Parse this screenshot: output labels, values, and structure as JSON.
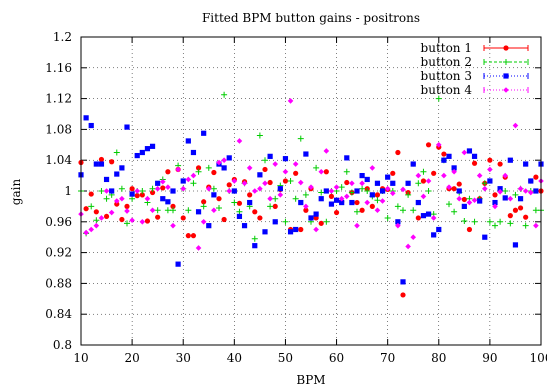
{
  "chart_data": {
    "type": "scatter",
    "title": "Fitted BPM button gains - positrons",
    "xlabel": "BPM",
    "ylabel": "gain",
    "xlim": [
      10,
      100
    ],
    "ylim": [
      0.8,
      1.2
    ],
    "xticks": [
      10,
      20,
      30,
      40,
      50,
      60,
      70,
      80,
      90,
      100
    ],
    "yticks": [
      0.8,
      0.84,
      0.88,
      0.92,
      0.96,
      1,
      1.04,
      1.08,
      1.12,
      1.16,
      1.2
    ],
    "ytick_labels": [
      "0.8",
      "0.84",
      "0.88",
      "0.92",
      "0.96",
      "1",
      "1.04",
      "1.08",
      "1.12",
      "1.16",
      "1.2"
    ],
    "xtick_labels": [
      "10",
      "20",
      "30",
      "40",
      "50",
      "60",
      "70",
      "80",
      "90",
      "100"
    ],
    "grid": true,
    "legend_position": "top-right",
    "series": [
      {
        "name": "button 1",
        "color": "#ff0000",
        "marker": "circle",
        "x": [
          10,
          11,
          12,
          13,
          14,
          15,
          16,
          17,
          18,
          19,
          20,
          21,
          22,
          23,
          24,
          25,
          26,
          27,
          28,
          29,
          30,
          31,
          32,
          33,
          34,
          35,
          36,
          37,
          38,
          39,
          40,
          41,
          42,
          43,
          44,
          45,
          46,
          47,
          48,
          49,
          50,
          51,
          52,
          53,
          54,
          55,
          56,
          57,
          58,
          59,
          60,
          61,
          62,
          63,
          64,
          65,
          66,
          67,
          68,
          69,
          70,
          71,
          72,
          73,
          74,
          75,
          76,
          77,
          78,
          79,
          80,
          81,
          82,
          83,
          84,
          85,
          86,
          87,
          88,
          89,
          90,
          91,
          92,
          93,
          94,
          95,
          96,
          97,
          98,
          99,
          100
        ],
        "y": [
          1.037,
          0.977,
          0.996,
          0.973,
          1.041,
          0.967,
          1.038,
          0.983,
          0.963,
          0.98,
          1.003,
          0.994,
          0.995,
          0.961,
          0.998,
          0.966,
          1.004,
          1.025,
          0.98,
          1.028,
          0.965,
          0.942,
          0.942,
          1.03,
          0.986,
          1.005,
          1.024,
          0.99,
          0.963,
          1.008,
          1.015,
          0.984,
          1.012,
          0.995,
          0.973,
          0.965,
          1.028,
          1.011,
          0.98,
          1.002,
          1.013,
          0.95,
          1.023,
          0.95,
          0.975,
          1.003,
          0.965,
          0.958,
          1.025,
          0.993,
          0.972,
          0.986,
          1.011,
          0.998,
          0.985,
          0.975,
          1.003,
          0.98,
          0.995,
          1.003,
          1.002,
          1.023,
          1.05,
          0.865,
          0.998,
          1.035,
          0.965,
          1.013,
          1.06,
          1.023,
          1.057,
          1.048,
          1.003,
          1.003,
          1.009,
          0.989,
          0.95,
          1.036,
          0.99,
          1.01,
          1.04,
          0.995,
          1.035,
          1.018,
          0.968,
          0.975,
          0.978,
          0.966,
          1.013,
          1.018,
          1.0
        ]
      },
      {
        "name": "button 2",
        "color": "#00cc00",
        "marker": "plus",
        "x": [
          10,
          11,
          12,
          13,
          14,
          15,
          16,
          17,
          18,
          19,
          20,
          21,
          22,
          23,
          24,
          25,
          26,
          27,
          28,
          29,
          30,
          31,
          32,
          33,
          34,
          35,
          36,
          37,
          38,
          39,
          40,
          41,
          42,
          43,
          44,
          45,
          46,
          47,
          48,
          49,
          50,
          51,
          52,
          53,
          54,
          55,
          56,
          57,
          58,
          59,
          60,
          61,
          62,
          63,
          64,
          65,
          66,
          67,
          68,
          69,
          70,
          71,
          72,
          73,
          74,
          75,
          76,
          77,
          78,
          79,
          80,
          81,
          82,
          83,
          84,
          85,
          86,
          87,
          88,
          89,
          90,
          91,
          92,
          93,
          94,
          95,
          96,
          97,
          98,
          99,
          100
        ],
        "y": [
          1.0,
          0.945,
          0.98,
          0.962,
          1.0,
          0.99,
          0.995,
          1.05,
          1.003,
          0.958,
          0.99,
          1.0,
          1.0,
          0.985,
          1.003,
          0.975,
          1.015,
          0.975,
          0.975,
          1.033,
          1.003,
          0.975,
          1.01,
          1.025,
          0.98,
          1.03,
          1.003,
          0.978,
          1.125,
          1.0,
          0.985,
          0.973,
          1.01,
          0.98,
          0.938,
          1.072,
          1.04,
          0.98,
          0.99,
          1.007,
          0.96,
          1.013,
          0.99,
          1.068,
          0.995,
          0.96,
          1.03,
          0.998,
          0.96,
          1.0,
          1.0,
          1.005,
          1.025,
          0.998,
          0.973,
          1.003,
          1.0,
          0.993,
          0.988,
          1.0,
          0.965,
          1.0,
          0.98,
          0.975,
          0.995,
          0.975,
          1.01,
          1.025,
          1.0,
          0.97,
          1.12,
          1.04,
          0.983,
          0.973,
          0.998,
          0.961,
          0.99,
          0.96,
          0.99,
          1.01,
          0.96,
          0.955,
          0.96,
          1.0,
          0.958,
          0.995,
          1.003,
          0.955,
          1.0,
          0.975,
          0.975
        ]
      },
      {
        "name": "button 3",
        "color": "#0000ff",
        "marker": "square",
        "x": [
          10,
          11,
          12,
          13,
          14,
          15,
          16,
          17,
          18,
          19,
          20,
          21,
          22,
          23,
          24,
          25,
          26,
          27,
          28,
          29,
          30,
          31,
          32,
          33,
          34,
          35,
          36,
          37,
          38,
          39,
          40,
          41,
          42,
          43,
          44,
          45,
          46,
          47,
          48,
          49,
          50,
          51,
          52,
          53,
          54,
          55,
          56,
          57,
          58,
          59,
          60,
          61,
          62,
          63,
          64,
          65,
          66,
          67,
          68,
          69,
          70,
          71,
          72,
          73,
          74,
          75,
          76,
          77,
          78,
          79,
          80,
          81,
          82,
          83,
          84,
          85,
          86,
          87,
          88,
          89,
          90,
          91,
          92,
          93,
          94,
          95,
          96,
          97,
          98,
          99,
          100
        ],
        "y": [
          1.021,
          1.095,
          1.085,
          1.035,
          1.035,
          1.015,
          1.0,
          1.022,
          1.03,
          1.083,
          0.996,
          1.046,
          1.05,
          1.055,
          1.058,
          1.01,
          0.99,
          0.986,
          1.0,
          0.905,
          1.013,
          1.065,
          1.05,
          0.973,
          1.075,
          0.955,
          0.995,
          1.035,
          1.03,
          1.043,
          1.0,
          0.967,
          0.955,
          0.985,
          0.929,
          1.021,
          0.947,
          1.045,
          0.96,
          1.003,
          1.042,
          0.947,
          0.95,
          0.985,
          1.048,
          0.965,
          0.97,
          0.99,
          1.0,
          0.983,
          0.988,
          0.985,
          1.043,
          0.985,
          1.0,
          1.02,
          1.015,
          0.995,
          1.01,
          1.0,
          1.018,
          1.01,
          0.96,
          0.882,
          1.01,
          1.035,
          0.985,
          0.968,
          0.97,
          0.943,
          0.95,
          1.04,
          1.045,
          1.03,
          1.0,
          0.98,
          1.052,
          1.045,
          0.987,
          0.94,
          1.013,
          0.985,
          1.003,
          0.991,
          1.04,
          0.93,
          0.99,
          1.035,
          1.013,
          1.0,
          1.035
        ]
      },
      {
        "name": "button 4",
        "color": "#ff00ff",
        "marker": "diamond",
        "x": [
          10,
          11,
          12,
          13,
          14,
          15,
          16,
          17,
          18,
          19,
          20,
          21,
          22,
          23,
          24,
          25,
          26,
          27,
          28,
          29,
          30,
          31,
          32,
          33,
          34,
          35,
          36,
          37,
          38,
          39,
          40,
          41,
          42,
          43,
          44,
          45,
          46,
          47,
          48,
          49,
          50,
          51,
          52,
          53,
          54,
          55,
          56,
          57,
          58,
          59,
          60,
          61,
          62,
          63,
          64,
          65,
          66,
          67,
          68,
          69,
          70,
          71,
          72,
          73,
          74,
          75,
          76,
          77,
          78,
          79,
          80,
          81,
          82,
          83,
          84,
          85,
          86,
          87,
          88,
          89,
          90,
          91,
          92,
          93,
          94,
          95,
          96,
          97,
          98,
          99,
          100
        ],
        "y": [
          0.97,
          0.946,
          0.95,
          0.955,
          0.965,
          1.0,
          0.972,
          0.987,
          0.99,
          0.974,
          0.962,
          1.0,
          0.96,
          0.99,
          0.975,
          1.003,
          1.012,
          1.005,
          0.955,
          1.028,
          1.003,
          1.015,
          1.02,
          0.926,
          0.96,
          1.003,
          0.975,
          1.037,
          1.04,
          1.0,
          1.013,
          1.065,
          1.01,
          1.03,
          1.0,
          1.003,
          1.01,
          0.99,
          1.035,
          0.995,
          1.025,
          1.117,
          1.035,
          1.011,
          0.98,
          1.005,
          0.95,
          1.025,
          1.052,
          1.0,
          1.005,
          0.99,
          0.993,
          1.01,
          0.955,
          1.01,
          0.985,
          1.03,
          0.975,
          0.987,
          1.003,
          0.997,
          0.955,
          1.002,
          0.928,
          0.94,
          1.02,
          0.993,
          1.013,
          0.965,
          1.06,
          1.02,
          1.005,
          1.025,
          0.99,
          1.05,
          0.985,
          0.988,
          1.02,
          1.003,
          1.028,
          0.98,
          0.999,
          1.02,
          0.99,
          1.085,
          1.003,
          1.0,
          0.998,
          0.955,
          1.013
        ]
      }
    ]
  }
}
